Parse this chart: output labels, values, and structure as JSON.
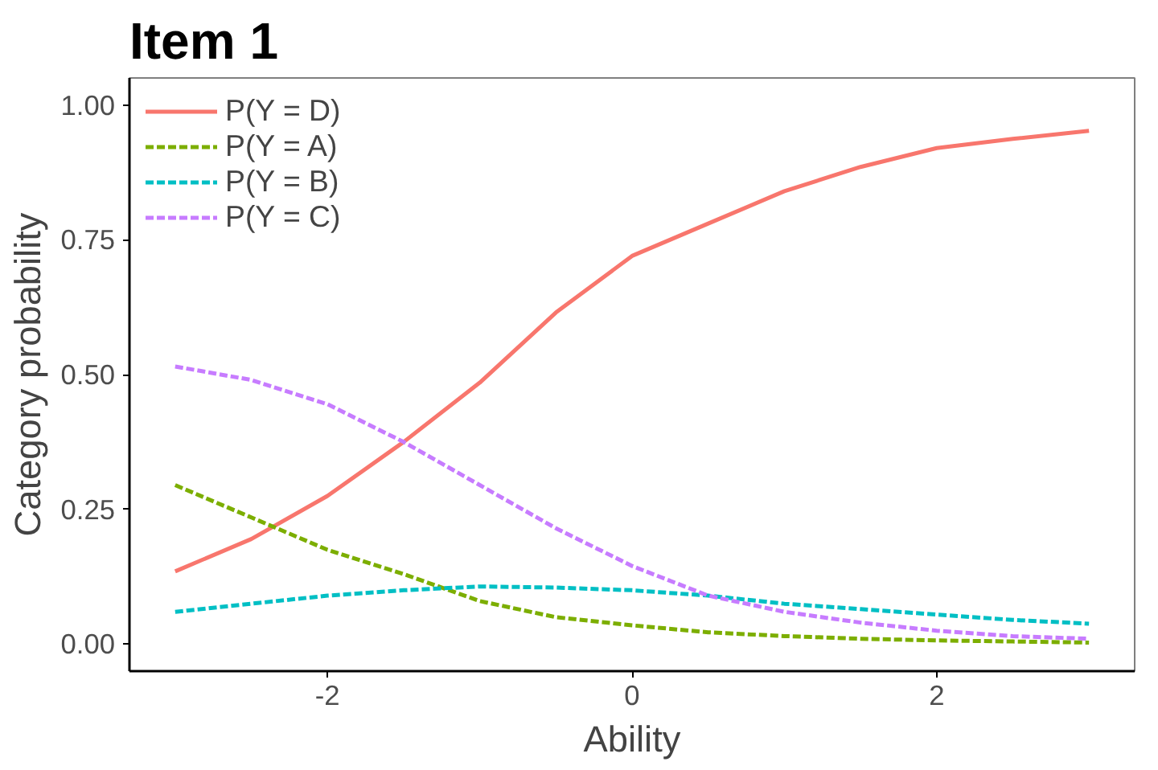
{
  "chart_data": {
    "type": "line",
    "title": "Item 1",
    "xlabel": "Ability",
    "ylabel": "Category probability",
    "x": [
      -3,
      -2.5,
      -2,
      -1.5,
      -1,
      -0.5,
      0,
      0.5,
      1,
      1.5,
      2,
      2.5,
      3
    ],
    "series": [
      {
        "name": "P(Y = D)",
        "color": "#f8766d",
        "line_style": "solid",
        "values": [
          0.135,
          0.195,
          0.275,
          0.375,
          0.485,
          0.615,
          0.72,
          0.78,
          0.84,
          0.885,
          0.92,
          0.937,
          0.952
        ]
      },
      {
        "name": "P(Y = A)",
        "color": "#7cae00",
        "line_style": "dashed",
        "values": [
          0.295,
          0.235,
          0.175,
          0.13,
          0.08,
          0.05,
          0.035,
          0.022,
          0.015,
          0.01,
          0.007,
          0.005,
          0.003
        ]
      },
      {
        "name": "P(Y = B)",
        "color": "#00bfc4",
        "line_style": "dashed",
        "values": [
          0.06,
          0.075,
          0.09,
          0.1,
          0.107,
          0.105,
          0.1,
          0.09,
          0.075,
          0.065,
          0.055,
          0.045,
          0.038
        ]
      },
      {
        "name": "P(Y = C)",
        "color": "#c77cff",
        "line_style": "dashed",
        "values": [
          0.515,
          0.49,
          0.445,
          0.375,
          0.295,
          0.215,
          0.145,
          0.09,
          0.06,
          0.04,
          0.025,
          0.015,
          0.01
        ]
      }
    ],
    "xlim": [
      -3.3,
      3.3
    ],
    "ylim": [
      -0.05,
      1.05
    ],
    "xticks": [
      -2,
      0,
      2
    ],
    "yticks": [
      {
        "value": 0,
        "label": "0.00"
      },
      {
        "value": 0.25,
        "label": "0.25"
      },
      {
        "value": 0.5,
        "label": "0.50"
      },
      {
        "value": 0.75,
        "label": "0.75"
      },
      {
        "value": 1,
        "label": "1.00"
      }
    ],
    "grid": false,
    "legend": "top left"
  }
}
